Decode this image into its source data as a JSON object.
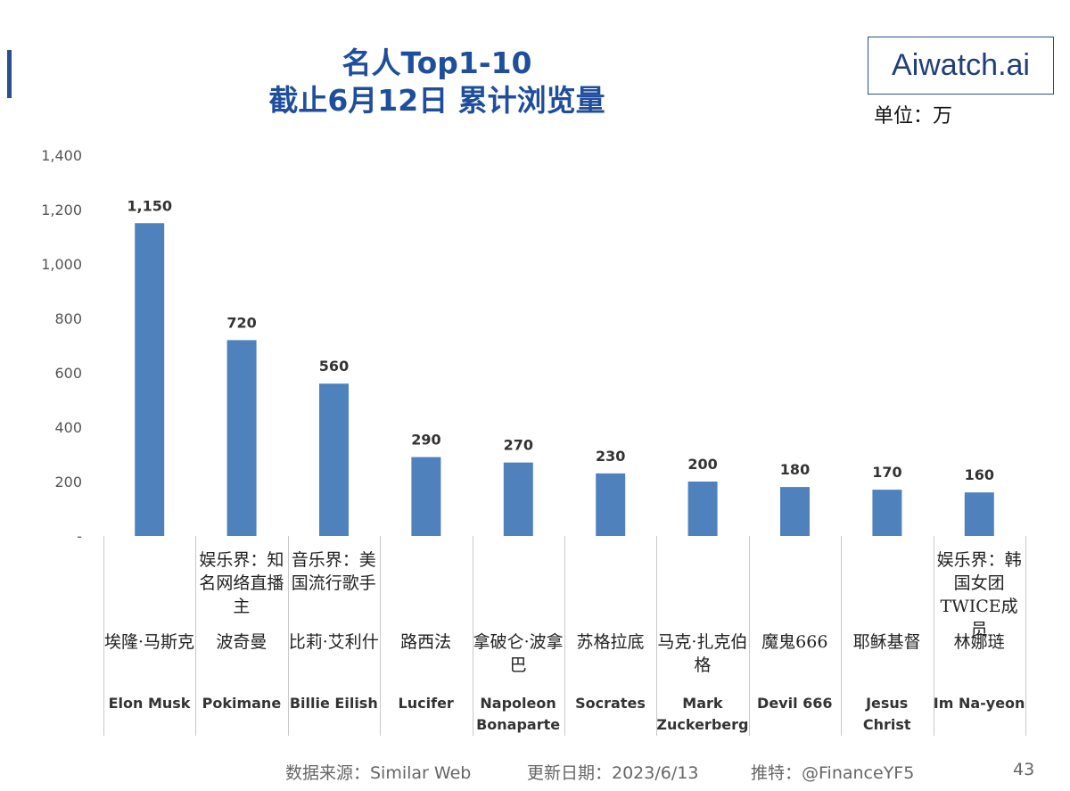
{
  "header": {
    "title_line1": "名人Top1-10",
    "title_line2": "截止6月12日 累计浏览量",
    "brand": "Aiwatch.ai",
    "unit": "单位：万"
  },
  "chart_data": {
    "type": "bar",
    "title": "名人Top1-10 截止6月12日 累计浏览量",
    "ylabel": "单位：万",
    "ylim": [
      0,
      1400
    ],
    "yticks": [
      0,
      200,
      400,
      600,
      800,
      1000,
      1200,
      1400
    ],
    "ytick_labels": [
      "-",
      "200",
      "400",
      "600",
      "800",
      "1,000",
      "1,200",
      "1,400"
    ],
    "categories": [
      "Elon Musk",
      "Pokimane",
      "Billie Eilish",
      "Lucifer",
      "Napoleon Bonaparte",
      "Socrates",
      "Mark Zuckerberg",
      "Devil 666",
      "Jesus Christ",
      "Im Na-yeon"
    ],
    "values": [
      1150,
      720,
      560,
      290,
      270,
      230,
      200,
      180,
      170,
      160
    ],
    "value_labels": [
      "1,150",
      "720",
      "560",
      "290",
      "270",
      "230",
      "200",
      "180",
      "170",
      "160"
    ],
    "bar_color": "#4f81bd",
    "grid": false
  },
  "categories_detail": [
    {
      "desc": "",
      "cn": "埃隆·马斯克",
      "en": "Elon Musk"
    },
    {
      "desc": "娱乐界：知名网络直播主",
      "cn": "波奇曼",
      "en": "Pokimane"
    },
    {
      "desc": "音乐界：美国流行歌手",
      "cn": "比莉·艾利什",
      "en": "Billie Eilish"
    },
    {
      "desc": "",
      "cn": "路西法",
      "en": "Lucifer"
    },
    {
      "desc": "",
      "cn": "拿破仑·波拿巴",
      "en": "Napoleon Bonaparte"
    },
    {
      "desc": "",
      "cn": "苏格拉底",
      "en": "Socrates"
    },
    {
      "desc": "",
      "cn": "马克·扎克伯格",
      "en": "Mark Zuckerberg"
    },
    {
      "desc": "",
      "cn": "魔鬼666",
      "en": "Devil 666"
    },
    {
      "desc": "",
      "cn": "耶稣基督",
      "en": "Jesus Christ"
    },
    {
      "desc": "娱乐界：韩国女团TWICE成员",
      "cn": "林娜琏",
      "en": "Im Na-yeon"
    }
  ],
  "footer": {
    "source": "数据来源：Similar Web",
    "updated": "更新日期：2023/6/13",
    "twitter": "推特：@FinanceYF5",
    "page_number": "43"
  }
}
